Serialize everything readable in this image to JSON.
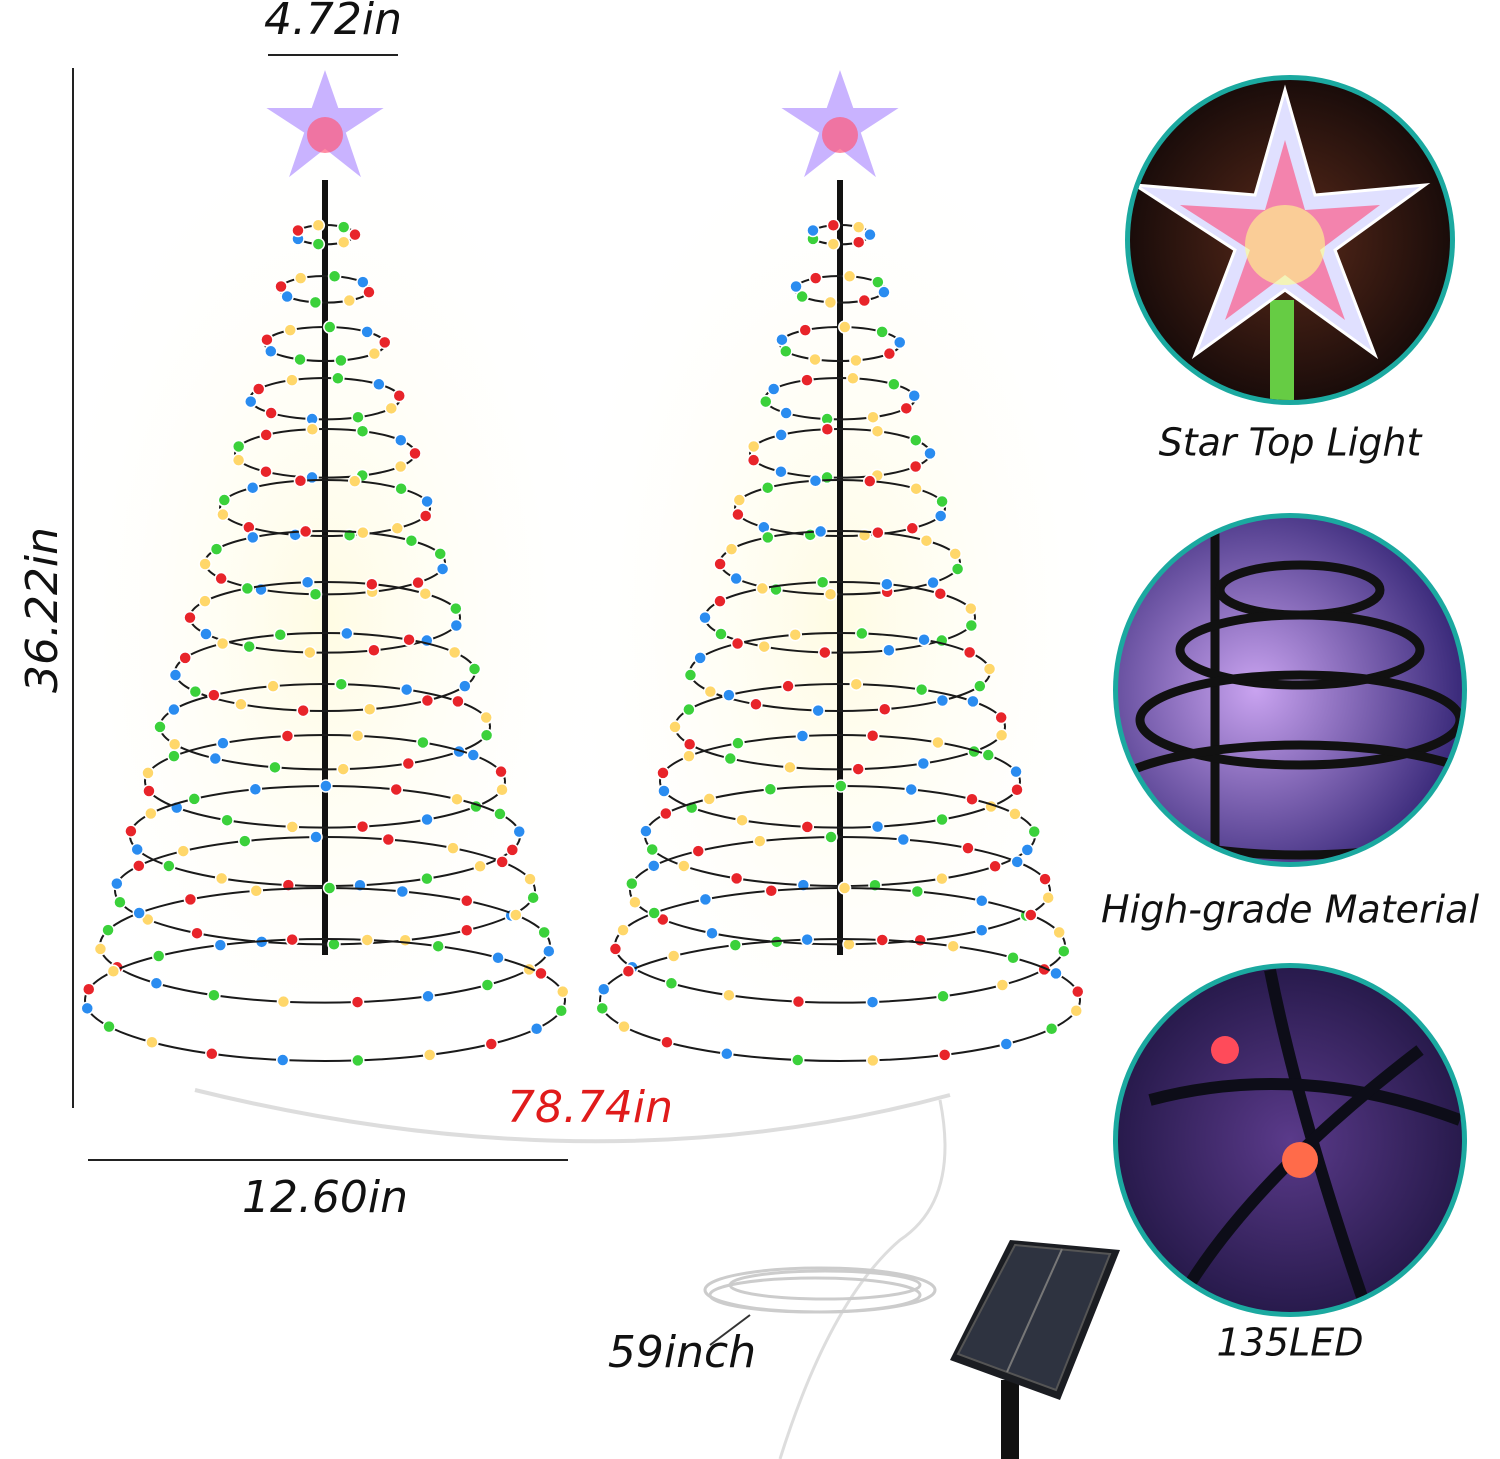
{
  "dimensions": {
    "top_width": "4.72in",
    "height": "36.22in",
    "spacing": "78.74in",
    "base_width": "12.60in",
    "cable_length": "59inch"
  },
  "features": [
    {
      "label": "Star Top Light"
    },
    {
      "label": "High-grade Material"
    },
    {
      "label": "135LED"
    }
  ]
}
